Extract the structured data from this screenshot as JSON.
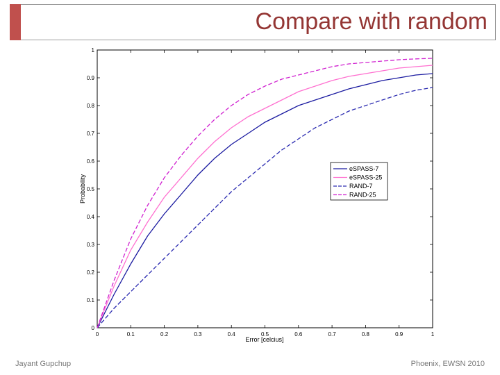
{
  "slide": {
    "title": "Compare with random",
    "footer_left": "Jayant Gupchup",
    "footer_right": "Phoenix, EWSN 2010",
    "accent_color": "#c0504d",
    "title_color": "#943634"
  },
  "chart_data": {
    "type": "line",
    "title": "",
    "xlabel": "Error [celcius]",
    "ylabel": "Probability",
    "xlim": [
      0,
      1
    ],
    "ylim": [
      0,
      1
    ],
    "xticks": [
      0,
      0.1,
      0.2,
      0.3,
      0.4,
      0.5,
      0.6,
      0.7,
      0.8,
      0.9,
      1
    ],
    "yticks": [
      0,
      0.1,
      0.2,
      0.3,
      0.4,
      0.5,
      0.6,
      0.7,
      0.8,
      0.9,
      1
    ],
    "xtick_labels": [
      "0",
      "0.1",
      "0.2",
      "0.3",
      "0.4",
      "0.5",
      "0.6",
      "0.7",
      "0.8",
      "0.9",
      "1"
    ],
    "ytick_labels": [
      "0",
      "0.1",
      "0.2",
      "0.3",
      "0.4",
      "0.5",
      "0.6",
      "0.7",
      "0.8",
      "0.9",
      "1"
    ],
    "grid": false,
    "legend_position": "center-right",
    "x": [
      0,
      0.05,
      0.1,
      0.15,
      0.2,
      0.25,
      0.3,
      0.35,
      0.4,
      0.45,
      0.5,
      0.55,
      0.6,
      0.65,
      0.7,
      0.75,
      0.8,
      0.85,
      0.9,
      0.95,
      1.0
    ],
    "series": [
      {
        "name": "eSPASS-7",
        "color": "#1a1aa0",
        "dash": "solid",
        "values": [
          0,
          0.12,
          0.23,
          0.33,
          0.41,
          0.48,
          0.55,
          0.61,
          0.66,
          0.7,
          0.74,
          0.77,
          0.8,
          0.82,
          0.84,
          0.86,
          0.875,
          0.89,
          0.9,
          0.91,
          0.915
        ]
      },
      {
        "name": "eSPASS-25",
        "color": "#ff70d0",
        "dash": "solid",
        "values": [
          0,
          0.15,
          0.28,
          0.38,
          0.47,
          0.54,
          0.61,
          0.67,
          0.72,
          0.76,
          0.79,
          0.82,
          0.85,
          0.87,
          0.89,
          0.905,
          0.915,
          0.925,
          0.935,
          0.94,
          0.945
        ]
      },
      {
        "name": "RAND-7",
        "color": "#2a2ab0",
        "dash": "dashed",
        "values": [
          0,
          0.07,
          0.13,
          0.19,
          0.25,
          0.31,
          0.37,
          0.43,
          0.49,
          0.54,
          0.59,
          0.64,
          0.68,
          0.72,
          0.75,
          0.78,
          0.8,
          0.82,
          0.84,
          0.855,
          0.865
        ]
      },
      {
        "name": "RAND-25",
        "color": "#d020d0",
        "dash": "dashed",
        "values": [
          0,
          0.17,
          0.32,
          0.44,
          0.54,
          0.62,
          0.69,
          0.75,
          0.8,
          0.84,
          0.87,
          0.895,
          0.91,
          0.925,
          0.94,
          0.95,
          0.955,
          0.96,
          0.965,
          0.968,
          0.97
        ]
      }
    ]
  }
}
